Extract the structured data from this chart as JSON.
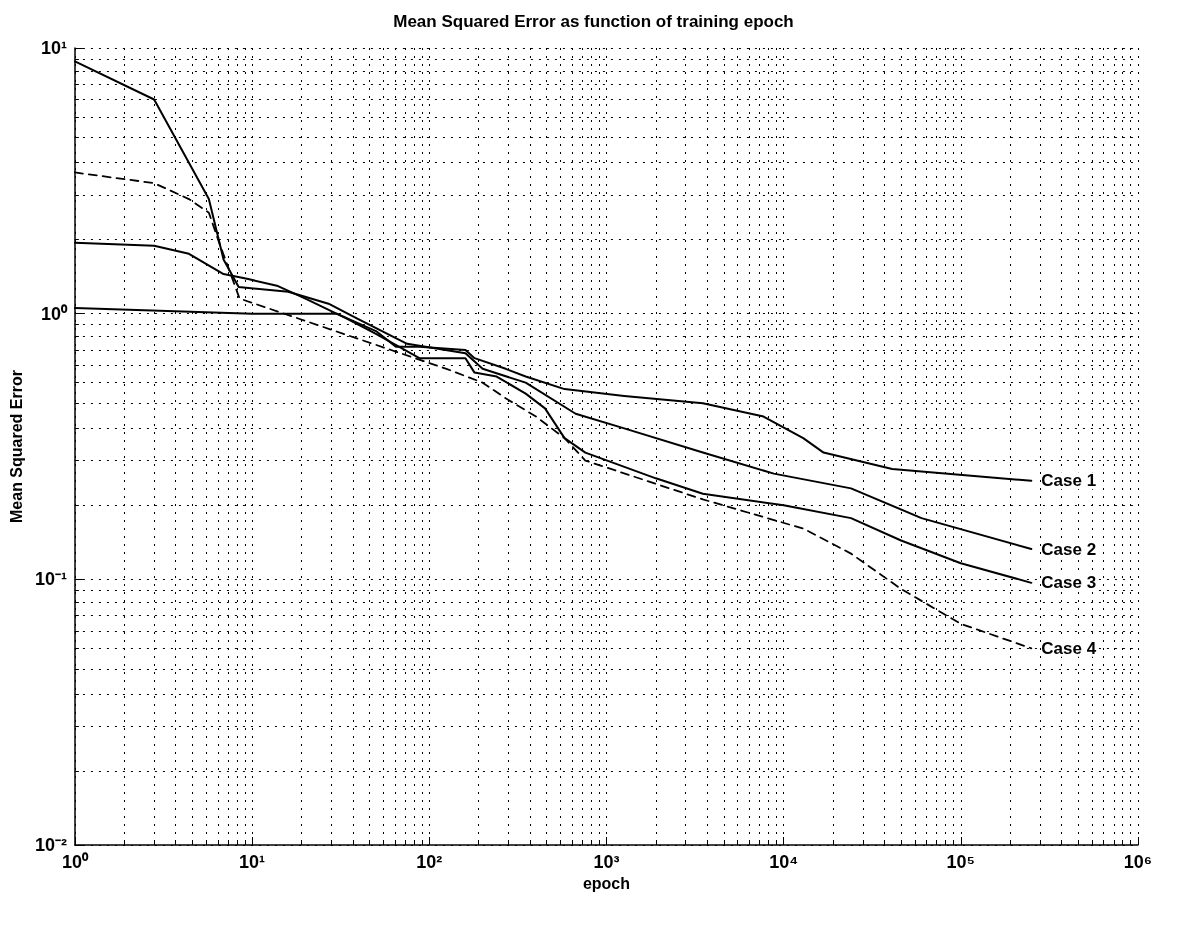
{
  "chart_data": {
    "type": "line",
    "title": "Mean Squared Error as function of training epoch",
    "xlabel": "epoch",
    "ylabel": "Mean Squared Error",
    "log": "xy",
    "grid": true,
    "marker": "none",
    "xlim": [
      1,
      1000000
    ],
    "ylim": [
      0.01,
      10
    ],
    "xticks": [
      {
        "value": 1,
        "label": "10⁰"
      },
      {
        "value": 10,
        "label": "10¹"
      },
      {
        "value": 100,
        "label": "10²"
      },
      {
        "value": 1000,
        "label": "10³"
      },
      {
        "value": 10000,
        "label": "10⁴"
      },
      {
        "value": 100000,
        "label": "10⁵"
      },
      {
        "value": 1000000,
        "label": "10⁶"
      }
    ],
    "yticks": [
      {
        "value": 0.01,
        "label": "10⁻²"
      },
      {
        "value": 0.1,
        "label": "10⁻¹"
      },
      {
        "value": 1,
        "label": "10⁰"
      },
      {
        "value": 10,
        "label": "10¹"
      }
    ],
    "series": [
      {
        "name": "Case 1",
        "color": "#000000",
        "line_style": "solid",
        "x": [
          1,
          10,
          30,
          50,
          65,
          88,
          160,
          180,
          270,
          350,
          580,
          1260,
          3500,
          7700,
          12900,
          16800,
          41000,
          250000
        ],
        "values": [
          1.05,
          1.0,
          1.0,
          0.86,
          0.75,
          0.75,
          0.73,
          0.68,
          0.62,
          0.58,
          0.52,
          0.49,
          0.46,
          0.41,
          0.34,
          0.3,
          0.26,
          0.235
        ]
      },
      {
        "name": "Case 2",
        "color": "#000000",
        "line_style": "solid",
        "x": [
          1,
          2.8,
          4.4,
          5.7,
          6.9,
          8.4,
          16,
          27,
          39,
          75,
          160,
          200,
          350,
          670,
          1260,
          3500,
          8800,
          24000,
          60000,
          250000
        ],
        "values": [
          8.9,
          6.4,
          3.7,
          2.7,
          1.6,
          1.26,
          1.21,
          1.09,
          0.96,
          0.77,
          0.71,
          0.62,
          0.55,
          0.42,
          0.37,
          0.3,
          0.25,
          0.22,
          0.17,
          0.13
        ]
      },
      {
        "name": "Case 3",
        "color": "#000000",
        "line_style": "solid",
        "x": [
          1,
          2.8,
          4.4,
          6.9,
          9.5,
          14,
          20,
          34,
          50,
          88,
          160,
          180,
          240,
          350,
          450,
          580,
          760,
          1900,
          3500,
          10000,
          24000,
          46000,
          100000,
          250000
        ],
        "values": [
          1.85,
          1.8,
          1.68,
          1.41,
          1.35,
          1.27,
          1.14,
          0.96,
          0.84,
          0.68,
          0.68,
          0.6,
          0.58,
          0.5,
          0.44,
          0.34,
          0.3,
          0.24,
          0.21,
          0.19,
          0.17,
          0.14,
          0.115,
          0.097
        ]
      },
      {
        "name": "Case 4",
        "color": "#000000",
        "line_style": "dashed",
        "x": [
          1,
          2.8,
          4.4,
          5.7,
          6.5,
          7.4,
          8.5,
          125,
          200,
          270,
          400,
          580,
          760,
          3500,
          13000,
          24000,
          46000,
          100000,
          250000
        ],
        "values": [
          3.4,
          3.1,
          2.7,
          2.4,
          1.86,
          1.47,
          1.14,
          0.62,
          0.55,
          0.48,
          0.41,
          0.34,
          0.28,
          0.2,
          0.155,
          0.125,
          0.092,
          0.068,
          0.055
        ]
      }
    ]
  }
}
